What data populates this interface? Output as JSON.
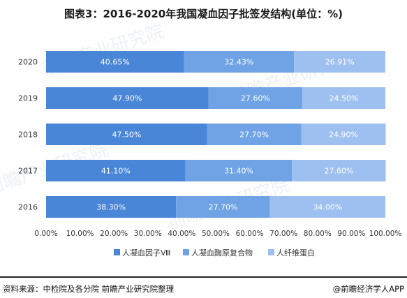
{
  "title": "图表3：2016-2020年我国凝血因子批签发结构(单位：%)",
  "footer": {
    "source": "资料来源：中检院及各分院 前瞻产业研究院整理",
    "copyright": "@前瞻经济学人APP"
  },
  "watermark": "前瞻产业研究院",
  "chart_data": {
    "type": "bar",
    "orientation": "horizontal",
    "stacked": true,
    "categories": [
      "2020",
      "2019",
      "2018",
      "2017",
      "2016"
    ],
    "series": [
      {
        "name": "人凝血因子Ⅷ",
        "color": "#4a86d8",
        "values": [
          40.65,
          47.9,
          47.5,
          41.1,
          38.3
        ],
        "labels": [
          "40.65%",
          "47.90%",
          "47.50%",
          "41.10%",
          "38.30%"
        ]
      },
      {
        "name": "人凝血酶原复合物",
        "color": "#6fa3e6",
        "values": [
          32.43,
          27.6,
          27.7,
          31.4,
          27.7
        ],
        "labels": [
          "32.43%",
          "27.60%",
          "27.70%",
          "31.40%",
          "27.70%"
        ]
      },
      {
        "name": "人纤维蛋白",
        "color": "#9dc0f0",
        "values": [
          26.91,
          24.5,
          24.9,
          27.6,
          34.0
        ],
        "labels": [
          "26.91%",
          "24.50%",
          "24.90%",
          "27.60%",
          "34.00%"
        ]
      }
    ],
    "xlim": [
      0,
      100
    ],
    "xticks": [
      "0.00%",
      "10.00%",
      "20.00%",
      "30.00%",
      "40.00%",
      "50.00%",
      "60.00%",
      "70.00%",
      "80.00%",
      "90.00%",
      "100.00%"
    ],
    "legend_position": "bottom"
  }
}
